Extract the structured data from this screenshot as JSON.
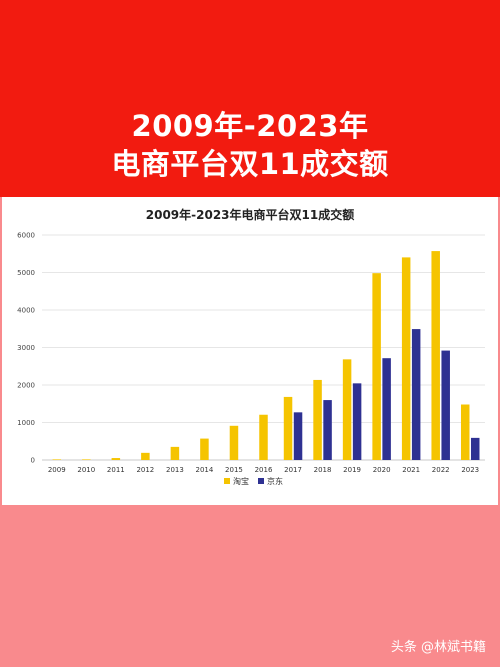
{
  "header": {
    "title_line1": "2009年-2023年",
    "title_line2": "电商平台双11成交额"
  },
  "watermark": "头条 @林斌书籍",
  "colors": {
    "header_bg": "#f21b10",
    "footer_bg": "#f98a8d",
    "taobao": "#f5c400",
    "jd": "#2e3192"
  },
  "chart_data": {
    "type": "bar",
    "title": "2009年-2023年电商平台双11成交额",
    "xlabel": "",
    "ylabel": "",
    "ylim": [
      0,
      6000
    ],
    "yticks": [
      0,
      1000,
      2000,
      3000,
      4000,
      5000,
      6000
    ],
    "grid": true,
    "legend": "bottom-center",
    "categories": [
      "2009",
      "2010",
      "2011",
      "2012",
      "2013",
      "2014",
      "2015",
      "2016",
      "2017",
      "2018",
      "2019",
      "2020",
      "2021",
      "2022",
      "2023"
    ],
    "series": [
      {
        "name": "淘宝",
        "color": "#f5c400",
        "values": [
          0.5,
          9.4,
          52,
          191,
          350,
          571,
          912,
          1207,
          1682,
          2135,
          2684,
          4982,
          5403,
          5571,
          1480
        ]
      },
      {
        "name": "京东",
        "color": "#2e3192",
        "values": [
          null,
          null,
          null,
          null,
          null,
          null,
          null,
          null,
          1271,
          1598,
          2044,
          2715,
          3491,
          2918,
          590
        ]
      }
    ]
  }
}
